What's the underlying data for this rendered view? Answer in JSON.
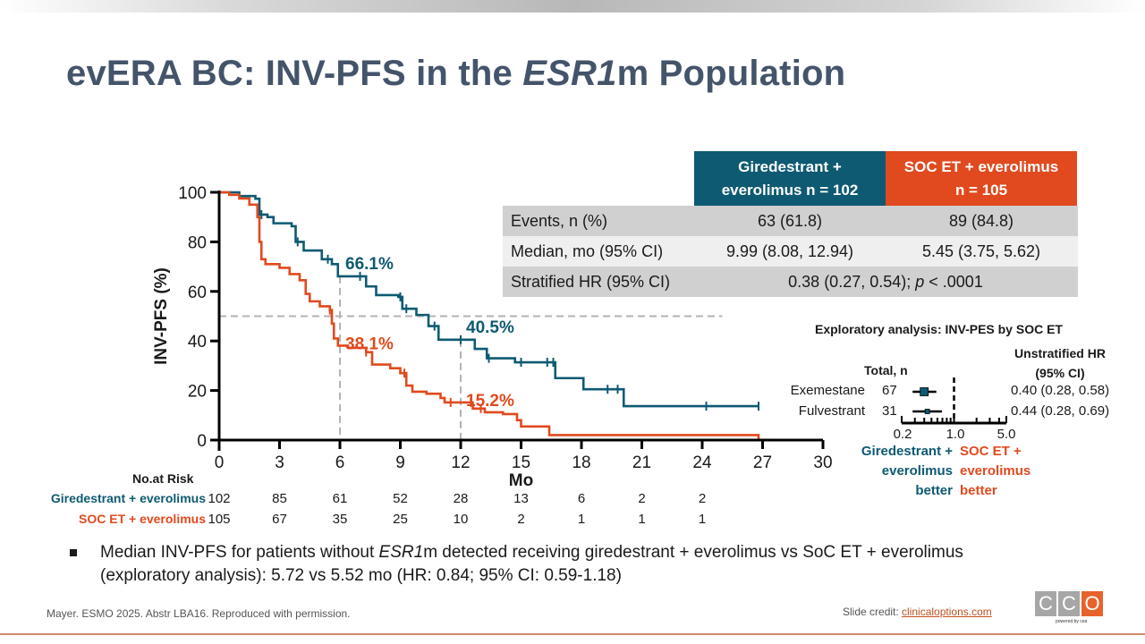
{
  "title": {
    "prefix": "evERA BC: INV-PFS in the ",
    "italic": "ESR1",
    "suffix": "m Population"
  },
  "summary_table": {
    "headers": [
      "Giredestrant + everolimus  n = 102",
      "SOC ET + everolimus n = 105"
    ],
    "header_lines": [
      [
        "Giredestrant +",
        "everolimus  n = 102"
      ],
      [
        "SOC ET + everolimus",
        "n = 105"
      ]
    ],
    "rows": [
      {
        "label": "Events, n (%)",
        "values": [
          "63 (61.8)",
          "89 (84.8)"
        ]
      },
      {
        "label": "Median, mo (95% CI)",
        "values": [
          "9.99 (8.08, 12.94)",
          "5.45 (3.75, 5.62)"
        ]
      },
      {
        "label": "Stratified HR (95% CI)",
        "span_prefix": "0.38 (0.27, 0.54); ",
        "span_italic": "p",
        "span_suffix": " < .0001"
      }
    ]
  },
  "colors": {
    "teal": "#0e5a72",
    "orange": "#e04a1e",
    "grid_dash": "#b3b3b3"
  },
  "chart_data": [
    {
      "type": "line",
      "subtype": "kaplan-meier",
      "title": "",
      "xlabel": "Mo",
      "ylabel": "INV-PFS (%)",
      "xlim": [
        0,
        30
      ],
      "ylim": [
        0,
        100
      ],
      "xticks": [
        0,
        3,
        6,
        9,
        12,
        15,
        18,
        21,
        24,
        27,
        30
      ],
      "yticks": [
        0,
        20,
        40,
        60,
        80,
        100
      ],
      "reference_lines": {
        "horizontal_y": 50,
        "vertical_x": [
          6,
          12
        ]
      },
      "series": [
        {
          "name": "Giredestrant + everolimus",
          "color": "#0e5a72",
          "steps": [
            [
              0,
              100
            ],
            [
              0.8,
              100
            ],
            [
              1.0,
              98.5
            ],
            [
              1.8,
              97.4
            ],
            [
              2.0,
              91
            ],
            [
              2.4,
              90
            ],
            [
              2.7,
              87.5
            ],
            [
              3.6,
              86.3
            ],
            [
              3.8,
              80
            ],
            [
              4.2,
              76.5
            ],
            [
              5.1,
              73
            ],
            [
              5.6,
              71
            ],
            [
              5.9,
              66.1
            ],
            [
              7.1,
              66.1
            ],
            [
              7.3,
              62
            ],
            [
              7.8,
              58.5
            ],
            [
              8.9,
              57.8
            ],
            [
              9.1,
              53
            ],
            [
              9.8,
              50.5
            ],
            [
              10.4,
              46
            ],
            [
              10.9,
              40.5
            ],
            [
              12.1,
              40.5
            ],
            [
              12.7,
              36.8
            ],
            [
              13.3,
              33
            ],
            [
              14.7,
              31.4
            ],
            [
              16.4,
              31.4
            ],
            [
              16.7,
              25
            ],
            [
              18.0,
              25
            ],
            [
              18.1,
              20.5
            ],
            [
              20.0,
              20.5
            ],
            [
              20.1,
              13.7
            ],
            [
              26.8,
              13.7
            ]
          ],
          "censor_x": [
            2.1,
            3.9,
            5.4,
            7.0,
            9.0,
            9.3,
            10.7,
            12.0,
            13.4,
            15.0,
            16.3,
            16.6,
            19.3,
            19.8,
            24.2,
            26.8
          ],
          "annotations": [
            {
              "x": 6,
              "label": "66.1%"
            },
            {
              "x": 12,
              "label": "40.5%"
            }
          ]
        },
        {
          "name": "SOC ET + everolimus",
          "color": "#e04a1e",
          "steps": [
            [
              0,
              100
            ],
            [
              0.5,
              99
            ],
            [
              1.0,
              97.5
            ],
            [
              1.5,
              95
            ],
            [
              1.9,
              90
            ],
            [
              2.0,
              80
            ],
            [
              2.1,
              73
            ],
            [
              2.3,
              71
            ],
            [
              3.0,
              69.5
            ],
            [
              3.5,
              67
            ],
            [
              4.0,
              64.5
            ],
            [
              4.3,
              59
            ],
            [
              4.5,
              56
            ],
            [
              5.0,
              54
            ],
            [
              5.5,
              52.5
            ],
            [
              5.6,
              47
            ],
            [
              5.7,
              41
            ],
            [
              5.9,
              38.1
            ],
            [
              6.4,
              37.2
            ],
            [
              7.3,
              35.5
            ],
            [
              7.6,
              30.5
            ],
            [
              8.5,
              29
            ],
            [
              9.0,
              27
            ],
            [
              9.3,
              22
            ],
            [
              9.6,
              19.5
            ],
            [
              10.3,
              18.7
            ],
            [
              11.0,
              17
            ],
            [
              11.2,
              15.2
            ],
            [
              12.2,
              15.2
            ],
            [
              12.6,
              12.7
            ],
            [
              13.2,
              11.2
            ],
            [
              14.1,
              10.5
            ],
            [
              14.8,
              8
            ],
            [
              15.0,
              5.5
            ],
            [
              16.2,
              5.5
            ],
            [
              16.4,
              2
            ],
            [
              26.8,
              2
            ],
            [
              26.8,
              0
            ]
          ],
          "censor_x": [
            5.5,
            7.3,
            9.2,
            11.5,
            12.5,
            13.0
          ],
          "annotations": [
            {
              "x": 6,
              "label": "38.1%"
            },
            {
              "x": 12,
              "label": "15.2%"
            }
          ]
        }
      ],
      "risk_table": {
        "header": "No.at Risk",
        "times": [
          0,
          3,
          6,
          9,
          12,
          15,
          18,
          21,
          24
        ],
        "rows": [
          {
            "label": "Giredestrant + everolimus",
            "values": [
              102,
              85,
              61,
              52,
              28,
              13,
              6,
              2,
              2
            ]
          },
          {
            "label": "SOC ET + everolimus",
            "values": [
              105,
              67,
              35,
              25,
              10,
              2,
              1,
              1,
              1
            ]
          }
        ]
      }
    },
    {
      "type": "forest",
      "title": "Exploratory analysis: INV-PES by SOC ET",
      "columns": {
        "n": "Total, n",
        "hr": [
          "Unstratified HR",
          "(95% CI)"
        ]
      },
      "xscale": "log",
      "xlim": [
        0.2,
        5.0
      ],
      "xtick_labels": [
        "0.2",
        "1.0",
        "5.0"
      ],
      "reference_x": 1.0,
      "rows": [
        {
          "label": "Exemestane",
          "n": 67,
          "hr": 0.4,
          "lo": 0.28,
          "hi": 0.58,
          "text": "0.40 (0.28, 0.58)"
        },
        {
          "label": "Fulvestrant",
          "n": 31,
          "hr": 0.44,
          "lo": 0.28,
          "hi": 0.69,
          "text": "0.44 (0.28, 0.69)"
        }
      ],
      "favors_left": [
        "Giredestrant +",
        "everolimus",
        "better"
      ],
      "favors_right": [
        "SOC ET +",
        "everolimus",
        "better"
      ]
    }
  ],
  "bullet": {
    "part1": "Median INV-PFS for patients without ",
    "italic": "ESR1",
    "part2": "m detected receiving giredestrant + everolimus vs SoC ET + everolimus (exploratory analysis): 5.72 vs 5.52 mo (HR: 0.84; 95% CI: 0.59-1.18)"
  },
  "footer": {
    "citation": "Mayer. ESMO 2025. Abstr LBA16. Reproduced with permission.",
    "credit_label": "Slide credit: ",
    "credit_link": "clinicaloptions.com",
    "logo_letters": [
      "C",
      "C",
      "O"
    ],
    "logo_sub": "powered by cea"
  }
}
